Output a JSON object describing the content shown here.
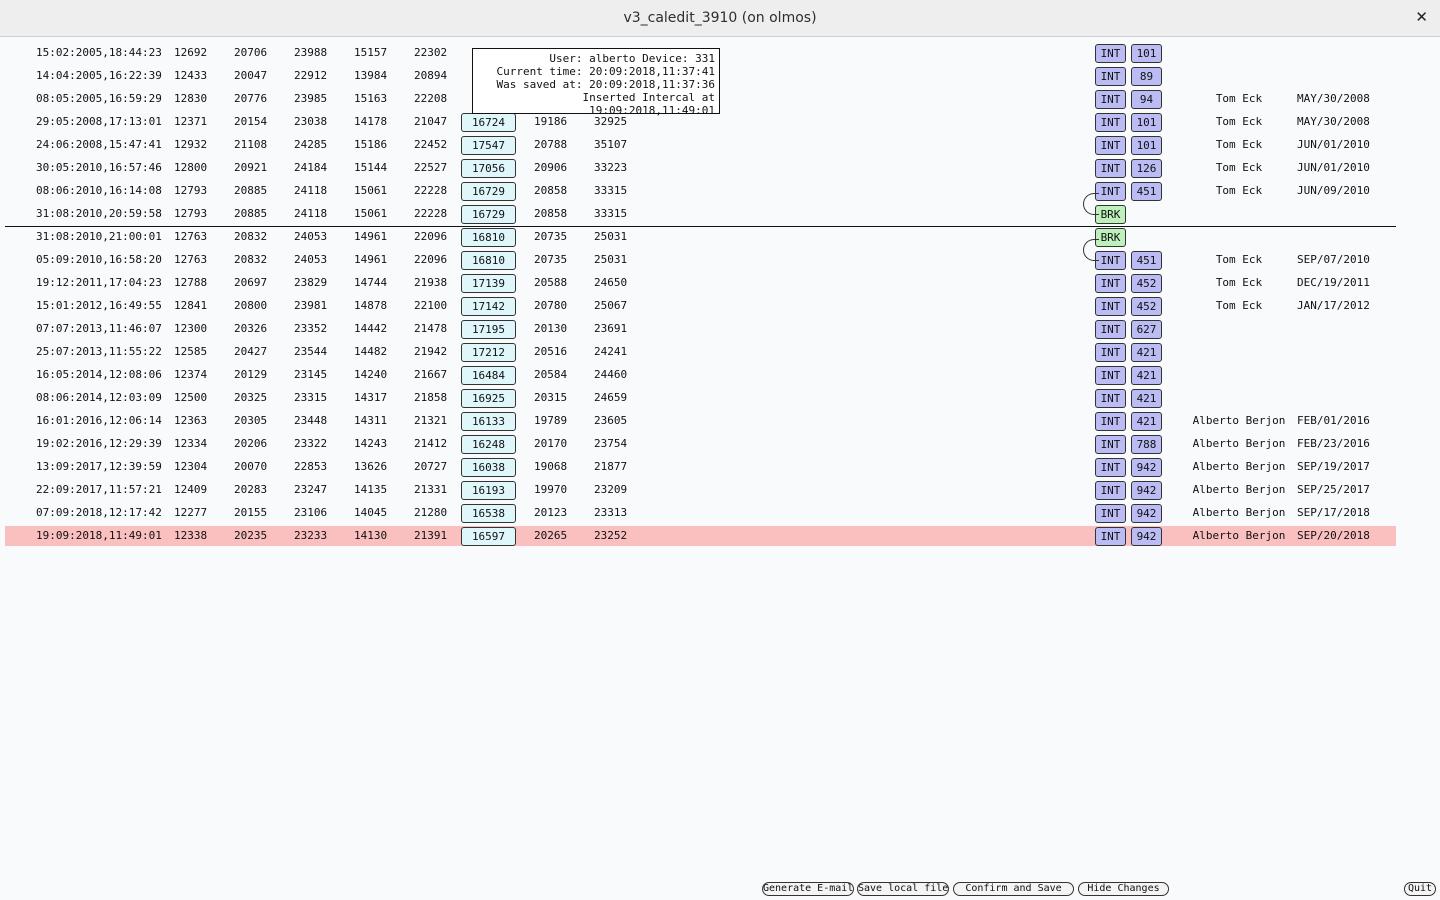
{
  "window": {
    "title": "v3_caledit_3910 (on olmos)",
    "close_glyph": "✕"
  },
  "tooltip": {
    "lines": [
      "User: alberto Device: 331",
      "Current time: 20:09:2018,11:37:41",
      "Was saved at: 20:09:2018,11:37:36",
      "Inserted Intercal at 19:09:2018,11:49:01"
    ]
  },
  "rows": [
    {
      "ts": "15:02:2005,18:44:23",
      "v1": "12692",
      "v2": "20706",
      "v3": "23988",
      "v4": "15157",
      "v5": "22302",
      "v6": "",
      "v7": "",
      "v8": "",
      "type": "INT",
      "num": "101",
      "user": "",
      "date": ""
    },
    {
      "ts": "14:04:2005,16:22:39",
      "v1": "12433",
      "v2": "20047",
      "v3": "22912",
      "v4": "13984",
      "v5": "20894",
      "v6": "",
      "v7": "",
      "v8": "",
      "type": "INT",
      "num": "89",
      "user": "",
      "date": ""
    },
    {
      "ts": "08:05:2005,16:59:29",
      "v1": "12830",
      "v2": "20776",
      "v3": "23985",
      "v4": "15163",
      "v5": "22208",
      "v6": "",
      "v7": "",
      "v8": "",
      "type": "INT",
      "num": "94",
      "user": "Tom Eck",
      "date": "MAY/30/2008"
    },
    {
      "ts": "29:05:2008,17:13:01",
      "v1": "12371",
      "v2": "20154",
      "v3": "23038",
      "v4": "14178",
      "v5": "21047",
      "v6": "16724",
      "v7": "19186",
      "v8": "32925",
      "type": "INT",
      "num": "101",
      "user": "Tom Eck",
      "date": "MAY/30/2008"
    },
    {
      "ts": "24:06:2008,15:47:41",
      "v1": "12932",
      "v2": "21108",
      "v3": "24285",
      "v4": "15186",
      "v5": "22452",
      "v6": "17547",
      "v7": "20788",
      "v8": "35107",
      "type": "INT",
      "num": "101",
      "user": "Tom Eck",
      "date": "JUN/01/2010"
    },
    {
      "ts": "30:05:2010,16:57:46",
      "v1": "12800",
      "v2": "20921",
      "v3": "24184",
      "v4": "15144",
      "v5": "22527",
      "v6": "17056",
      "v7": "20906",
      "v8": "33223",
      "type": "INT",
      "num": "126",
      "user": "Tom Eck",
      "date": "JUN/01/2010"
    },
    {
      "ts": "08:06:2010,16:14:08",
      "v1": "12793",
      "v2": "20885",
      "v3": "24118",
      "v4": "15061",
      "v5": "22228",
      "v6": "16729",
      "v7": "20858",
      "v8": "33315",
      "type": "INT",
      "num": "451",
      "user": "Tom Eck",
      "date": "JUN/09/2010"
    },
    {
      "ts": "31:08:2010,20:59:58",
      "v1": "12793",
      "v2": "20885",
      "v3": "24118",
      "v4": "15061",
      "v5": "22228",
      "v6": "16729",
      "v7": "20858",
      "v8": "33315",
      "type": "BRK",
      "num": "",
      "user": "",
      "date": ""
    },
    {
      "ts": "31:08:2010,21:00:01",
      "v1": "12763",
      "v2": "20832",
      "v3": "24053",
      "v4": "14961",
      "v5": "22096",
      "v6": "16810",
      "v7": "20735",
      "v8": "25031",
      "type": "BRK",
      "num": "",
      "user": "",
      "date": ""
    },
    {
      "ts": "05:09:2010,16:58:20",
      "v1": "12763",
      "v2": "20832",
      "v3": "24053",
      "v4": "14961",
      "v5": "22096",
      "v6": "16810",
      "v7": "20735",
      "v8": "25031",
      "type": "INT",
      "num": "451",
      "user": "Tom Eck",
      "date": "SEP/07/2010"
    },
    {
      "ts": "19:12:2011,17:04:23",
      "v1": "12788",
      "v2": "20697",
      "v3": "23829",
      "v4": "14744",
      "v5": "21938",
      "v6": "17139",
      "v7": "20588",
      "v8": "24650",
      "type": "INT",
      "num": "452",
      "user": "Tom Eck",
      "date": "DEC/19/2011"
    },
    {
      "ts": "15:01:2012,16:49:55",
      "v1": "12841",
      "v2": "20800",
      "v3": "23981",
      "v4": "14878",
      "v5": "22100",
      "v6": "17142",
      "v7": "20780",
      "v8": "25067",
      "type": "INT",
      "num": "452",
      "user": "Tom Eck",
      "date": "JAN/17/2012"
    },
    {
      "ts": "07:07:2013,11:46:07",
      "v1": "12300",
      "v2": "20326",
      "v3": "23352",
      "v4": "14442",
      "v5": "21478",
      "v6": "17195",
      "v7": "20130",
      "v8": "23691",
      "type": "INT",
      "num": "627",
      "user": "",
      "date": ""
    },
    {
      "ts": "25:07:2013,11:55:22",
      "v1": "12585",
      "v2": "20427",
      "v3": "23544",
      "v4": "14482",
      "v5": "21942",
      "v6": "17212",
      "v7": "20516",
      "v8": "24241",
      "type": "INT",
      "num": "421",
      "user": "",
      "date": ""
    },
    {
      "ts": "16:05:2014,12:08:06",
      "v1": "12374",
      "v2": "20129",
      "v3": "23145",
      "v4": "14240",
      "v5": "21667",
      "v6": "16484",
      "v7": "20584",
      "v8": "24460",
      "type": "INT",
      "num": "421",
      "user": "",
      "date": ""
    },
    {
      "ts": "08:06:2014,12:03:09",
      "v1": "12500",
      "v2": "20325",
      "v3": "23315",
      "v4": "14317",
      "v5": "21858",
      "v6": "16925",
      "v7": "20315",
      "v8": "24659",
      "type": "INT",
      "num": "421",
      "user": "",
      "date": ""
    },
    {
      "ts": "16:01:2016,12:06:14",
      "v1": "12363",
      "v2": "20305",
      "v3": "23448",
      "v4": "14311",
      "v5": "21321",
      "v6": "16133",
      "v7": "19789",
      "v8": "23605",
      "type": "INT",
      "num": "421",
      "user": "Alberto Berjon",
      "date": "FEB/01/2016"
    },
    {
      "ts": "19:02:2016,12:29:39",
      "v1": "12334",
      "v2": "20206",
      "v3": "23322",
      "v4": "14243",
      "v5": "21412",
      "v6": "16248",
      "v7": "20170",
      "v8": "23754",
      "type": "INT",
      "num": "788",
      "user": "Alberto Berjon",
      "date": "FEB/23/2016"
    },
    {
      "ts": "13:09:2017,12:39:59",
      "v1": "12304",
      "v2": "20070",
      "v3": "22853",
      "v4": "13626",
      "v5": "20727",
      "v6": "16038",
      "v7": "19068",
      "v8": "21877",
      "type": "INT",
      "num": "942",
      "user": "Alberto Berjon",
      "date": "SEP/19/2017"
    },
    {
      "ts": "22:09:2017,11:57:21",
      "v1": "12409",
      "v2": "20283",
      "v3": "23247",
      "v4": "14135",
      "v5": "21331",
      "v6": "16193",
      "v7": "19970",
      "v8": "23209",
      "type": "INT",
      "num": "942",
      "user": "Alberto Berjon",
      "date": "SEP/25/2017"
    },
    {
      "ts": "07:09:2018,12:17:42",
      "v1": "12277",
      "v2": "20155",
      "v3": "23106",
      "v4": "14045",
      "v5": "21280",
      "v6": "16538",
      "v7": "20123",
      "v8": "23313",
      "type": "INT",
      "num": "942",
      "user": "Alberto Berjon",
      "date": "SEP/17/2018"
    },
    {
      "ts": "19:09:2018,11:49:01",
      "v1": "12338",
      "v2": "20235",
      "v3": "23233",
      "v4": "14130",
      "v5": "21391",
      "v6": "16597",
      "v7": "20265",
      "v8": "23252",
      "type": "INT",
      "num": "942",
      "user": "Alberto Berjon",
      "date": "SEP/20/2018",
      "highlight": true
    }
  ],
  "buttons": {
    "generate_email": "Generate E-mail",
    "save_local_file": "Save local file",
    "confirm_and_save": "Confirm and Save",
    "hide_changes": "Hide Changes",
    "quit": "Quit"
  },
  "colors": {
    "highlight_row": "#fac0c0",
    "value_box": "#dff6fb",
    "int_tag": "#bcbcf5",
    "brk_tag": "#bef0bc"
  }
}
